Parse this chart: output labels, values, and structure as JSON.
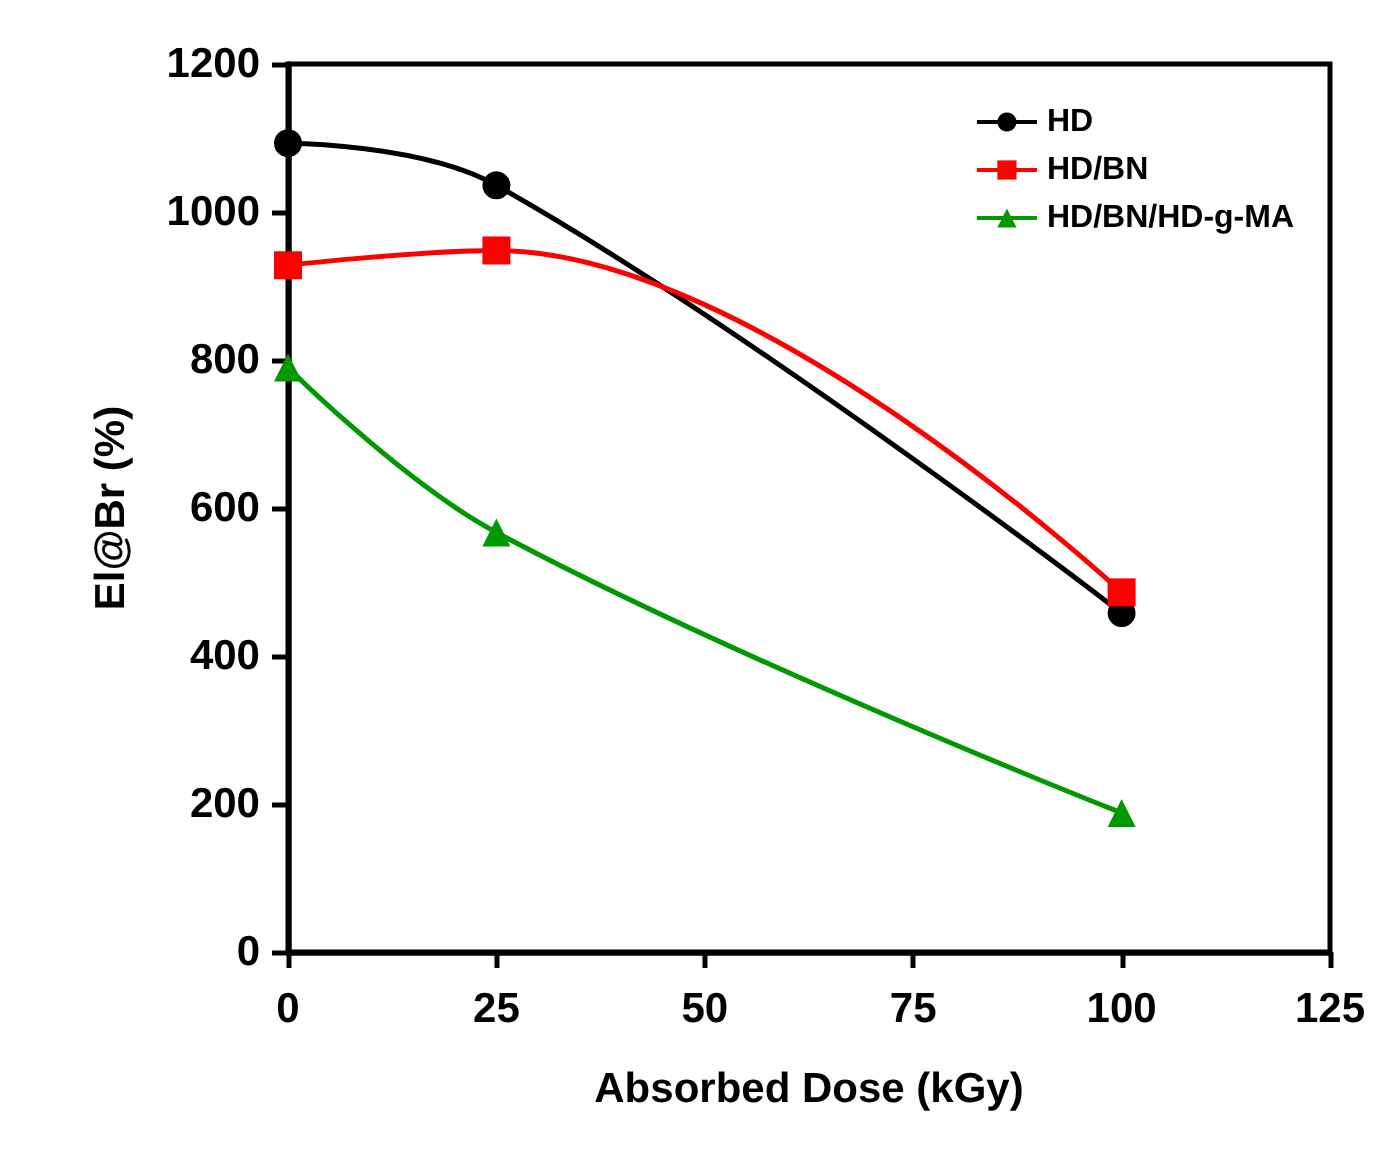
{
  "chart_data": {
    "type": "line",
    "xlabel": "Absorbed Dose (kGy)",
    "ylabel": "El@Br (%)",
    "x": [
      0,
      25,
      100
    ],
    "series": [
      {
        "name": "HD",
        "color": "#000000",
        "values": [
          1093,
          1036,
          458
        ],
        "marker": "circle"
      },
      {
        "name": "HD/BN",
        "color": "#ff0000",
        "values": [
          928,
          948,
          486
        ],
        "marker": "square"
      },
      {
        "name": "HD/BN/HD-g-MA",
        "color": "#009900",
        "values": [
          790,
          567,
          188
        ],
        "marker": "triangle"
      }
    ],
    "xlim": [
      0,
      125
    ],
    "xticks": [
      0,
      25,
      50,
      75,
      100,
      125
    ],
    "ylim": [
      0,
      1200
    ],
    "yticks": [
      0,
      200,
      400,
      600,
      800,
      1000,
      1200
    ],
    "grid": false,
    "legend": "top right",
    "line_style": "solid"
  }
}
